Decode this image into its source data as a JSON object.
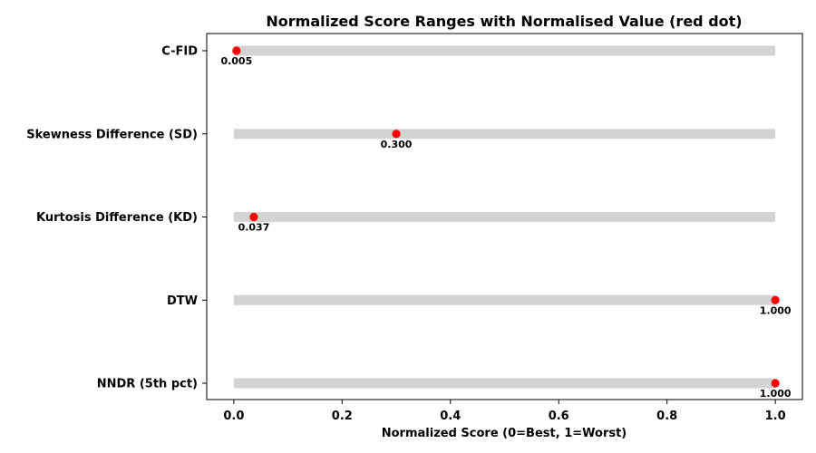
{
  "chart_data": {
    "type": "scatter",
    "title": "Normalized Score Ranges with Normalised Value (red dot)",
    "xlabel": "Normalized Score (0=Best, 1=Worst)",
    "ylabel": "",
    "xlim": [
      -0.05,
      1.05
    ],
    "xticks": [
      0.0,
      0.2,
      0.4,
      0.6,
      0.8,
      1.0
    ],
    "xtick_labels": [
      "0.0",
      "0.2",
      "0.4",
      "0.6",
      "0.8",
      "1.0"
    ],
    "grid": false,
    "range": [
      0,
      1
    ],
    "range_color": "#d3d3d3",
    "dot_color": "#ff0000",
    "categories": [
      "C-FID",
      "Skewness Difference (SD)",
      "Kurtosis Difference (KD)",
      "DTW",
      "NNDR (5th pct)"
    ],
    "values": [
      0.005,
      0.3,
      0.037,
      1.0,
      1.0
    ],
    "value_labels": [
      "0.005",
      "0.300",
      "0.037",
      "1.000",
      "1.000"
    ]
  }
}
